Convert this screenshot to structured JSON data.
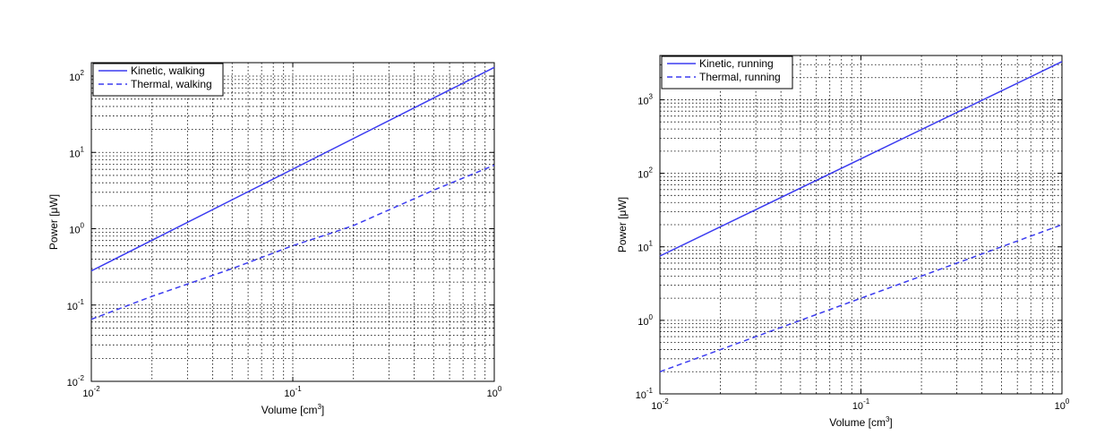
{
  "chart_data": [
    {
      "type": "line",
      "xlabel": "Volume [cm3]",
      "xlabel_base": "Volume [cm",
      "xlabel_sup": "3",
      "xlabel_end": "]",
      "ylabel": "Power [μW]",
      "xscale": "log",
      "yscale": "log",
      "xlim": [
        0.01,
        1
      ],
      "ylim": [
        0.01,
        150
      ],
      "x_ticks": [
        0.01,
        0.1,
        1
      ],
      "x_tick_labels": [
        {
          "base": "10",
          "exp": "-2"
        },
        {
          "base": "10",
          "exp": "-1"
        },
        {
          "base": "10",
          "exp": "0"
        }
      ],
      "y_ticks": [
        0.01,
        0.1,
        1,
        10,
        100
      ],
      "y_tick_labels": [
        {
          "base": "10",
          "exp": "-2"
        },
        {
          "base": "10",
          "exp": "-1"
        },
        {
          "base": "10",
          "exp": "0"
        },
        {
          "base": "10",
          "exp": "1"
        },
        {
          "base": "10",
          "exp": "2"
        }
      ],
      "grid": true,
      "legend_position": "top-left",
      "series": [
        {
          "name": "Kinetic, walking",
          "style": "solid",
          "color": "#3b3bf0",
          "x": [
            0.01,
            1
          ],
          "y": [
            0.28,
            130
          ]
        },
        {
          "name": "Thermal, walking",
          "style": "dashed",
          "color": "#3b3bf0",
          "x": [
            0.01,
            0.02,
            0.05,
            0.1,
            0.15,
            0.2,
            0.5,
            1
          ],
          "y": [
            0.065,
            0.13,
            0.3,
            0.6,
            0.85,
            1.1,
            3.2,
            6.8
          ]
        }
      ]
    },
    {
      "type": "line",
      "xlabel": "Volume [cm3]",
      "xlabel_base": "Volume [cm",
      "xlabel_sup": "3",
      "xlabel_end": "]",
      "ylabel": "Power [μW]",
      "xscale": "log",
      "yscale": "log",
      "xlim": [
        0.01,
        1
      ],
      "ylim": [
        0.1,
        4000
      ],
      "x_ticks": [
        0.01,
        0.1,
        1
      ],
      "x_tick_labels": [
        {
          "base": "10",
          "exp": "-2"
        },
        {
          "base": "10",
          "exp": "-1"
        },
        {
          "base": "10",
          "exp": "0"
        }
      ],
      "y_ticks": [
        0.1,
        1,
        10,
        100,
        1000
      ],
      "y_tick_labels": [
        {
          "base": "10",
          "exp": "-1"
        },
        {
          "base": "10",
          "exp": "0"
        },
        {
          "base": "10",
          "exp": "1"
        },
        {
          "base": "10",
          "exp": "2"
        },
        {
          "base": "10",
          "exp": "3"
        }
      ],
      "grid": true,
      "legend_position": "top-left",
      "series": [
        {
          "name": "Kinetic, running",
          "style": "solid",
          "color": "#3b3bf0",
          "x": [
            0.01,
            1
          ],
          "y": [
            7.5,
            3300
          ]
        },
        {
          "name": "Thermal, running",
          "style": "dashed",
          "color": "#3b3bf0",
          "x": [
            0.01,
            1
          ],
          "y": [
            0.2,
            20
          ]
        }
      ]
    }
  ]
}
